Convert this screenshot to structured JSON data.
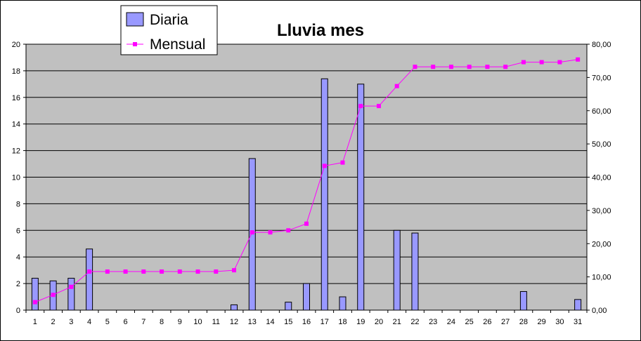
{
  "chart_data": {
    "type": "bar",
    "title": "Lluvia mes",
    "xlabel": "",
    "ylabel": "",
    "categories": [
      "1",
      "2",
      "3",
      "4",
      "5",
      "6",
      "7",
      "8",
      "9",
      "10",
      "11",
      "12",
      "13",
      "14",
      "15",
      "16",
      "17",
      "18",
      "19",
      "20",
      "21",
      "22",
      "23",
      "24",
      "25",
      "26",
      "27",
      "28",
      "29",
      "30",
      "31"
    ],
    "series": [
      {
        "name": "Diaria",
        "type": "bar",
        "axis": "left",
        "color": "#9999ff",
        "values": [
          2.4,
          2.2,
          2.4,
          4.6,
          0,
          0,
          0,
          0,
          0,
          0,
          0,
          0.4,
          11.4,
          0,
          0.6,
          2.0,
          17.4,
          1.0,
          17.0,
          0,
          6.0,
          5.8,
          0,
          0,
          0,
          0,
          0,
          1.4,
          0,
          0,
          0.8
        ]
      },
      {
        "name": "Mensual",
        "type": "line",
        "axis": "right",
        "color": "#ff00ff",
        "values": [
          2.4,
          4.6,
          7.0,
          11.6,
          11.6,
          11.6,
          11.6,
          11.6,
          11.6,
          11.6,
          11.6,
          12.0,
          23.4,
          23.4,
          24.0,
          26.0,
          43.4,
          44.4,
          61.4,
          61.4,
          67.4,
          73.2,
          73.2,
          73.2,
          73.2,
          73.2,
          73.2,
          74.6,
          74.6,
          74.6,
          75.4
        ]
      }
    ],
    "ylim": [
      0,
      20
    ],
    "yticks": [
      "0",
      "2",
      "4",
      "6",
      "8",
      "10",
      "12",
      "14",
      "16",
      "18",
      "20"
    ],
    "y2lim": [
      0,
      80
    ],
    "y2ticks": [
      "0,00",
      "10,00",
      "20,00",
      "30,00",
      "40,00",
      "50,00",
      "60,00",
      "70,00",
      "80,00"
    ],
    "grid": true,
    "plot_background": "#c0c0c0",
    "legend_position": "top-left"
  }
}
